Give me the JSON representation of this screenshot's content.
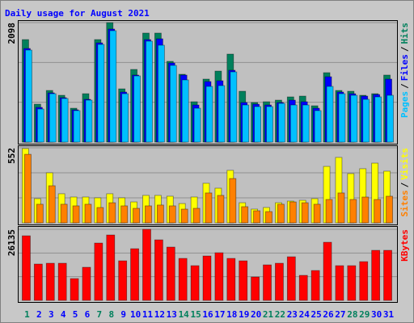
{
  "legend_separator": "/",
  "chart_data": [
    {
      "type": "bar",
      "title": "Daily usage for August 2021",
      "ylim": [
        0,
        2098
      ],
      "yticks": [
        2098
      ],
      "series": [
        {
          "name": "Hits",
          "color": "#00805c",
          "values": [
            1800,
            666,
            907,
            822,
            595,
            850,
            1800,
            2098,
            935,
            1276,
            1914,
            1914,
            1418,
            1191,
            709,
            1106,
            1247,
            1545,
            893,
            695,
            709,
            737,
            794,
            808,
            638,
            1219,
            907,
            893,
            822,
            850,
            1177
          ]
        },
        {
          "name": "Files",
          "color": "#0000ff",
          "values": [
            1644,
            610,
            865,
            780,
            567,
            751,
            1743,
            1985,
            879,
            1177,
            1800,
            1814,
            1389,
            1177,
            652,
            1063,
            1077,
            1262,
            695,
            666,
            652,
            695,
            737,
            709,
            595,
            1148,
            879,
            850,
            808,
            836,
            1106
          ]
        },
        {
          "name": "Pages",
          "color": "#00c0ff",
          "values": [
            1616,
            581,
            850,
            766,
            553,
            737,
            1715,
            1956,
            850,
            1162,
            1772,
            1701,
            1347,
            1092,
            595,
            978,
            992,
            1233,
            652,
            624,
            624,
            680,
            652,
            652,
            553,
            978,
            850,
            822,
            751,
            794,
            822
          ]
        }
      ]
    },
    {
      "type": "bar",
      "ylim": [
        0,
        552
      ],
      "yticks": [
        552
      ],
      "series": [
        {
          "name": "Visits",
          "color": "#ffff00",
          "values": [
            546,
            178,
            368,
            214,
            190,
            190,
            184,
            214,
            184,
            154,
            202,
            202,
            196,
            142,
            190,
            291,
            255,
            386,
            148,
            101,
            113,
            148,
            160,
            166,
            178,
            415,
            481,
            362,
            398,
            439,
            380
          ]
        },
        {
          "name": "Sites",
          "color": "#ff8000",
          "values": [
            504,
            137,
            273,
            137,
            125,
            137,
            113,
            148,
            125,
            107,
            125,
            131,
            125,
            101,
            107,
            220,
            202,
            326,
            119,
            89,
            83,
            137,
            154,
            148,
            137,
            172,
            220,
            172,
            190,
            172,
            196
          ]
        }
      ]
    },
    {
      "type": "bar",
      "ylim": [
        0,
        26135
      ],
      "yticks": [
        26135
      ],
      "categories": [
        "1",
        "2",
        "3",
        "4",
        "5",
        "6",
        "7",
        "8",
        "9",
        "10",
        "11",
        "12",
        "13",
        "14",
        "15",
        "16",
        "17",
        "18",
        "19",
        "20",
        "21",
        "22",
        "23",
        "24",
        "25",
        "26",
        "27",
        "28",
        "29",
        "30",
        "31"
      ],
      "category_colors": [
        "#00805c",
        "#0000ff",
        "#0000ff",
        "#0000ff",
        "#0000ff",
        "#0000ff",
        "#00805c",
        "#00805c",
        "#0000ff",
        "#0000ff",
        "#0000ff",
        "#0000ff",
        "#0000ff",
        "#00805c",
        "#00805c",
        "#0000ff",
        "#0000ff",
        "#0000ff",
        "#0000ff",
        "#0000ff",
        "#00805c",
        "#00805c",
        "#0000ff",
        "#0000ff",
        "#0000ff",
        "#0000ff",
        "#0000ff",
        "#00805c",
        "#00805c",
        "#0000ff",
        "#0000ff"
      ],
      "series": [
        {
          "name": "KBytes",
          "color": "#ff0000",
          "values": [
            23759,
            13365,
            13662,
            13662,
            8019,
            12177,
            21086,
            24056,
            14553,
            19008,
            26135,
            22274,
            19602,
            15444,
            12771,
            16335,
            17522,
            15444,
            14553,
            8613,
            13068,
            13662,
            16038,
            9207,
            10989,
            21383,
            12771,
            12771,
            14256,
            18413,
            18413
          ]
        }
      ]
    }
  ]
}
